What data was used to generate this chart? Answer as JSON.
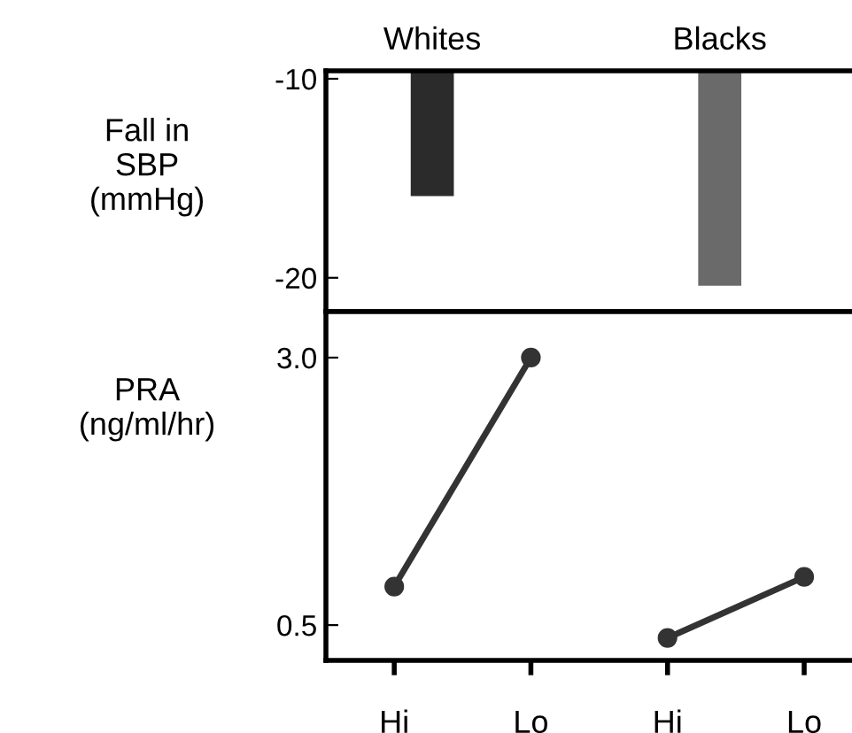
{
  "chart_data": [
    {
      "type": "bar",
      "categories": [
        "Whites",
        "Blacks"
      ],
      "ylabel": "Fall in\nSBP\n(mmHg)",
      "ylim": [
        -21.7,
        -9.6
      ],
      "yticks": [
        -10,
        -20
      ],
      "colors": [
        "#2b2b2b",
        "#6a6a6a"
      ],
      "values": [
        -15.9,
        -20.4
      ],
      "grid": false
    },
    {
      "type": "line",
      "categories": [
        "Hi",
        "Lo",
        "Hi",
        "Lo"
      ],
      "ylabel": "PRA\n(ng/ml/hr)",
      "ylim": [
        0.17,
        3.43
      ],
      "yticks": [
        {
          "value": 3.0,
          "label": "3.0"
        },
        0.5
      ],
      "marker": "circle",
      "line_style": "solid",
      "grid": false,
      "series": [
        {
          "color": "#333333",
          "values": [
            0.86,
            3.0,
            null,
            null
          ]
        },
        {
          "color": "#333333",
          "values": [
            null,
            null,
            0.38,
            0.95
          ]
        }
      ]
    }
  ]
}
